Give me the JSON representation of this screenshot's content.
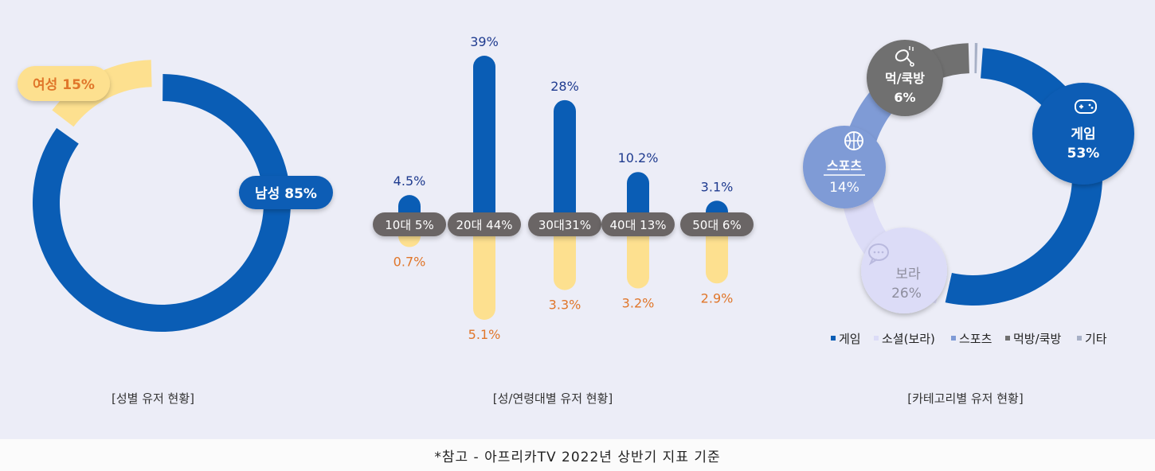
{
  "chart_data": [
    {
      "type": "pie",
      "caption": "[성별 유저 현황]",
      "slices": [
        {
          "label": "남성",
          "value": 85,
          "value_label": "85%",
          "color": "#0a5db5"
        },
        {
          "label": "여성",
          "value": 15,
          "value_label": "15%",
          "color": "#fde08f"
        }
      ]
    },
    {
      "type": "bar",
      "caption": "[성/연령대별 유저 현황]",
      "categories": [
        "10대 5%",
        "20대 44%",
        "30대31%",
        "40대 13%",
        "50대 6%"
      ],
      "series": [
        {
          "values": [
            4.5,
            39,
            28,
            10.2,
            3.1
          ],
          "labels": [
            "4.5%",
            "39%",
            "28%",
            "10.2%",
            "3.1%"
          ],
          "color": "#0a5db5"
        },
        {
          "values": [
            0.7,
            5.1,
            3.3,
            3.2,
            2.9
          ],
          "labels": [
            "0.7%",
            "5.1%",
            "3.3%",
            "3.2%",
            "2.9%"
          ],
          "color": "#fde08f"
        }
      ]
    },
    {
      "type": "pie",
      "caption": "[카테고리별 유저 현황]",
      "slices": [
        {
          "label": "게임",
          "value": 53,
          "value_label": "53%",
          "color": "#0a5db5"
        },
        {
          "label": "보라",
          "value": 26,
          "value_label": "26%",
          "color": "#dcdcf7"
        },
        {
          "label": "스포츠",
          "value": 14,
          "value_label": "14%",
          "color": "#7f9bd6"
        },
        {
          "label": "먹/쿡방",
          "value": 6,
          "value_label": "6%",
          "color": "#707070"
        },
        {
          "label": "",
          "value": 1,
          "value_label": "",
          "color": "#a7b0c6"
        }
      ],
      "legend": [
        "게임",
        "소셜(보라)",
        "스포츠",
        "먹방/쿡방",
        "기타"
      ],
      "legend_placement": "bottom"
    }
  ],
  "icons": {
    "game": "gamepad-icon",
    "sports": "basketball-icon",
    "social": "chat-bubble-icon",
    "food": "chicken-leg-icon"
  },
  "footer": "*참고 - 아프리카TV 2022년 상반기 지표 기준"
}
